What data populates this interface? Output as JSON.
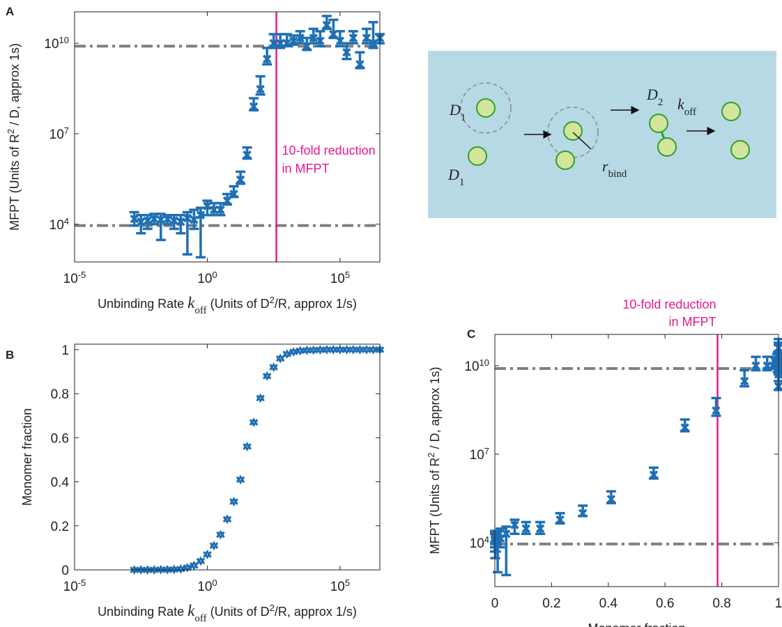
{
  "chart_data": [
    {
      "type": "errorbar",
      "panel": "A",
      "xlabel": [
        "Unbinding Rate ",
        "k",
        "off",
        " (Units of D",
        "2",
        "/R, approx 1/s)"
      ],
      "ylabel": [
        "MFPT (Units of R",
        "2",
        " / D, approx 1s)"
      ],
      "xscale": "log",
      "yscale": "log",
      "xlim": [
        1e-05,
        3160000
      ],
      "ylim": [
        560,
        110000000000
      ],
      "xticks": [
        {
          "value": 1e-05,
          "label": [
            "10",
            "-5"
          ]
        },
        {
          "value": 1,
          "label": [
            "10",
            "0"
          ]
        },
        {
          "value": 100000,
          "label": [
            "10",
            "5"
          ]
        }
      ],
      "yticks": [
        {
          "value": 10000,
          "label": [
            "10",
            "4"
          ]
        },
        {
          "value": 10000000,
          "label": [
            "10",
            "7"
          ]
        },
        {
          "value": 10000000000,
          "label": [
            "10",
            "10"
          ]
        }
      ],
      "hlines": [
        9000,
        8000000000
      ],
      "hline_color": "#808080",
      "vline": 400,
      "vline_color": "#e6198c",
      "annotation": [
        "10-fold reduction",
        "in MFPT"
      ],
      "color": "#1f6fb4",
      "x": [
        0.00178,
        0.00316,
        0.00562,
        0.01,
        0.0178,
        0.0316,
        0.0562,
        0.1,
        0.178,
        0.316,
        0.562,
        1,
        1.78,
        3.16,
        5.62,
        10,
        17.8,
        31.6,
        56.2,
        100,
        178,
        316,
        562,
        1000,
        1780,
        3160,
        5620,
        10000,
        17800,
        31600,
        56200,
        100000,
        178000,
        316000,
        562000,
        1000000,
        1780000,
        3160000
      ],
      "values": [
        15000,
        12000,
        13000,
        15000,
        14000,
        15000,
        13000,
        12000,
        16000,
        14000,
        20000,
        40000,
        30000,
        30000,
        60000,
        100000,
        300000,
        2000000,
        80000000,
        300000000,
        3000000000,
        10000000000,
        10000000000,
        10000000000,
        12000000000,
        15000000000,
        8000000000,
        15000000000,
        12000000000,
        40000000000,
        20000000000,
        12000000000,
        5000000000,
        15000000000,
        2000000000,
        15000000000,
        10000000000,
        15000000000
      ],
      "error_upper": [
        25000,
        20000,
        20000,
        22000,
        22000,
        20000,
        20000,
        20000,
        25000,
        30000,
        35000,
        60000,
        50000,
        50000,
        100000,
        180000,
        550000,
        3500000,
        150000000,
        800000000,
        7000000000,
        20000000000,
        20000000000,
        20000000000,
        18000000000,
        25000000000,
        15000000000,
        30000000000,
        25000000000,
        80000000000,
        60000000000,
        25000000000,
        10000000000,
        25000000000,
        5000000000,
        30000000000,
        50000000000,
        20000000000
      ],
      "error_lower": [
        9000,
        5000,
        7000,
        10000,
        3000,
        10000,
        7000,
        5000,
        1000,
        7000,
        800,
        20000,
        20000,
        20000,
        45000,
        80000,
        220000,
        1500000,
        60000000,
        200000000,
        2000000000,
        7000000000,
        7000000000,
        8000000000,
        9000000000,
        10000000000,
        6000000000,
        10000000000,
        8000000000,
        30000000000,
        15000000000,
        8000000000,
        3000000000,
        10000000000,
        1500000000,
        10000000000,
        7000000000,
        10000000000
      ]
    },
    {
      "type": "scatter",
      "panel": "B",
      "xlabel": [
        "Unbinding Rate ",
        "k",
        "off",
        " (Units of D",
        "2",
        "/R, approx 1/s)"
      ],
      "ylabel": "Monomer fraction",
      "xscale": "log",
      "xlim": [
        1e-05,
        3160000
      ],
      "ylim": [
        0,
        1.025
      ],
      "xticks": [
        {
          "value": 1e-05,
          "label": [
            "10",
            "-5"
          ]
        },
        {
          "value": 1,
          "label": [
            "10",
            "0"
          ]
        },
        {
          "value": 100000,
          "label": [
            "10",
            "5"
          ]
        }
      ],
      "yticks": [
        0,
        0.2,
        0.4,
        0.6,
        0.8,
        1
      ],
      "color": "#1f6fb4",
      "x": [
        0.00178,
        0.00316,
        0.00562,
        0.01,
        0.0178,
        0.0316,
        0.0562,
        0.1,
        0.178,
        0.316,
        0.562,
        1,
        1.78,
        3.16,
        5.62,
        10,
        17.8,
        31.6,
        56.2,
        100,
        178,
        316,
        562,
        1000,
        1780,
        3160,
        5620,
        10000,
        17800,
        31600,
        56200,
        100000,
        178000,
        316000,
        562000,
        1000000,
        1780000,
        3160000
      ],
      "values": [
        0,
        0,
        0,
        0,
        0.001,
        0.001,
        0.002,
        0.004,
        0.01,
        0.02,
        0.04,
        0.07,
        0.11,
        0.16,
        0.23,
        0.31,
        0.41,
        0.56,
        0.67,
        0.78,
        0.88,
        0.92,
        0.96,
        0.98,
        0.99,
        0.995,
        0.997,
        0.998,
        0.999,
        1,
        1,
        1,
        1,
        1,
        1,
        1,
        1,
        1
      ]
    },
    {
      "type": "errorbar",
      "panel": "C",
      "xlabel": "Monomer fraction",
      "ylabel": [
        "MFPT (Units of R",
        "2",
        " / D, approx 1s)"
      ],
      "yscale": "log",
      "xlim": [
        0,
        1
      ],
      "ylim": [
        325,
        115000000000
      ],
      "xticks": [
        0,
        0.2,
        0.4,
        0.6,
        0.8,
        1
      ],
      "yticks": [
        {
          "value": 10000,
          "label": [
            "10",
            "4"
          ]
        },
        {
          "value": 10000000,
          "label": [
            "10",
            "7"
          ]
        },
        {
          "value": 10000000000,
          "label": [
            "10",
            "10"
          ]
        }
      ],
      "hlines": [
        9000,
        8000000000
      ],
      "hline_color": "#808080",
      "vline": 0.785,
      "vline_color": "#e6198c",
      "annotation": [
        "10-fold reduction",
        "in MFPT"
      ],
      "color": "#1f6fb4",
      "x": [
        0,
        0,
        0,
        0,
        0.001,
        0.001,
        0.002,
        0.004,
        0.01,
        0.02,
        0.04,
        0.07,
        0.11,
        0.16,
        0.23,
        0.31,
        0.41,
        0.56,
        0.67,
        0.78,
        0.88,
        0.92,
        0.96,
        0.98,
        0.99,
        0.995,
        0.997,
        0.998,
        0.999,
        1,
        1,
        1,
        1,
        1,
        1,
        1,
        1,
        1
      ],
      "values": [
        15000,
        12000,
        13000,
        15000,
        14000,
        15000,
        13000,
        12000,
        16000,
        14000,
        20000,
        40000,
        30000,
        30000,
        60000,
        100000,
        300000,
        2000000,
        80000000,
        300000000,
        3000000000,
        10000000000,
        10000000000,
        10000000000,
        12000000000,
        15000000000,
        8000000000,
        15000000000,
        12000000000,
        40000000000,
        20000000000,
        12000000000,
        5000000000,
        15000000000,
        2000000000,
        15000000000,
        10000000000,
        15000000000
      ],
      "error_upper": [
        25000,
        20000,
        20000,
        22000,
        22000,
        20000,
        20000,
        20000,
        25000,
        30000,
        35000,
        60000,
        50000,
        50000,
        100000,
        180000,
        550000,
        3500000,
        150000000,
        800000000,
        7000000000,
        20000000000,
        20000000000,
        20000000000,
        18000000000,
        25000000000,
        15000000000,
        30000000000,
        25000000000,
        80000000000,
        60000000000,
        25000000000,
        10000000000,
        25000000000,
        5000000000,
        30000000000,
        50000000000,
        20000000000
      ],
      "error_lower": [
        9000,
        5000,
        7000,
        10000,
        3000,
        10000,
        7000,
        5000,
        1000,
        7000,
        800,
        20000,
        20000,
        20000,
        45000,
        80000,
        220000,
        1500000,
        60000000,
        200000000,
        2000000000,
        7000000000,
        7000000000,
        8000000000,
        9000000000,
        10000000000,
        6000000000,
        10000000000,
        8000000000,
        30000000000,
        15000000000,
        8000000000,
        3000000000,
        10000000000,
        1500000000,
        10000000000,
        7000000000,
        10000000000
      ]
    }
  ],
  "diagram": {
    "labels": [
      [
        "D",
        "1"
      ],
      [
        "D",
        "1"
      ],
      [
        "D",
        "2"
      ],
      [
        "k",
        "off"
      ],
      [
        "r",
        "bind"
      ]
    ]
  }
}
